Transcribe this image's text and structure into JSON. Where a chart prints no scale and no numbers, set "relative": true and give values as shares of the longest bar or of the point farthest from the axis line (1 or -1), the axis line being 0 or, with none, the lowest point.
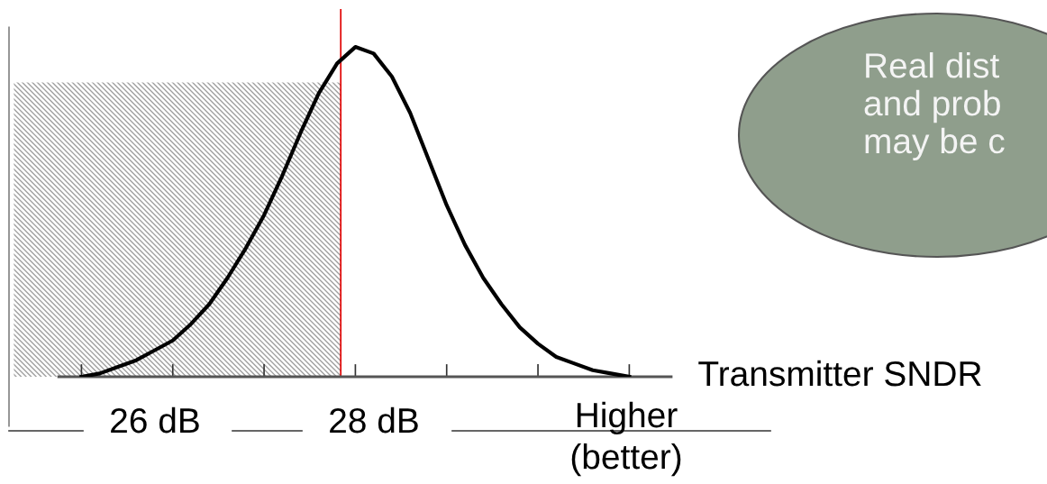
{
  "chart_data": {
    "type": "line",
    "relative": true,
    "xlabel": "Transmitter SNDR",
    "categories": [
      null,
      null,
      null,
      null,
      null,
      null,
      null,
      null,
      null,
      null,
      null,
      null,
      null,
      null,
      null,
      null,
      null,
      null,
      null,
      null,
      null,
      null,
      null,
      null,
      null,
      null,
      null,
      null,
      null,
      null,
      null
    ],
    "series": [
      {
        "color": "#000000",
        "values": [
          0.0,
          0.01,
          0.03,
          0.05,
          0.08,
          0.11,
          0.16,
          0.22,
          0.3,
          0.39,
          0.49,
          0.61,
          0.74,
          0.86,
          0.95,
          1.0,
          0.98,
          0.91,
          0.8,
          0.66,
          0.52,
          0.4,
          0.3,
          0.22,
          0.15,
          0.1,
          0.06,
          0.04,
          0.02,
          0.01,
          0.0
        ]
      }
    ],
    "grid": false,
    "marker": "none",
    "line_style": "solid",
    "annotations": [
      "26 dB",
      "28 dB",
      "Higher\n(better)",
      "Real dist\nand prob\nmay be c"
    ]
  }
}
